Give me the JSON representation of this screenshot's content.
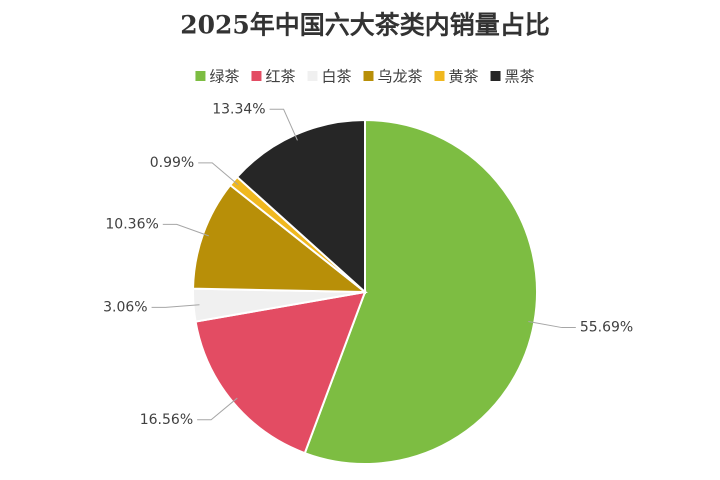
{
  "chart_data": {
    "type": "pie",
    "title": "2025年中国六大茶类内销量占比",
    "categories": [
      "绿茶",
      "红茶",
      "白茶",
      "乌龙茶",
      "黄茶",
      "黑茶"
    ],
    "values": [
      55.69,
      16.56,
      3.06,
      10.36,
      0.99,
      13.34
    ],
    "value_labels": [
      "55.69%",
      "16.56%",
      "3.06%",
      "10.36%",
      "0.99%",
      "13.34%"
    ],
    "colors": [
      "#7dbd42",
      "#e34c63",
      "#f0f0f0",
      "#b88f08",
      "#f0b81f",
      "#262626"
    ],
    "legend": "top"
  }
}
